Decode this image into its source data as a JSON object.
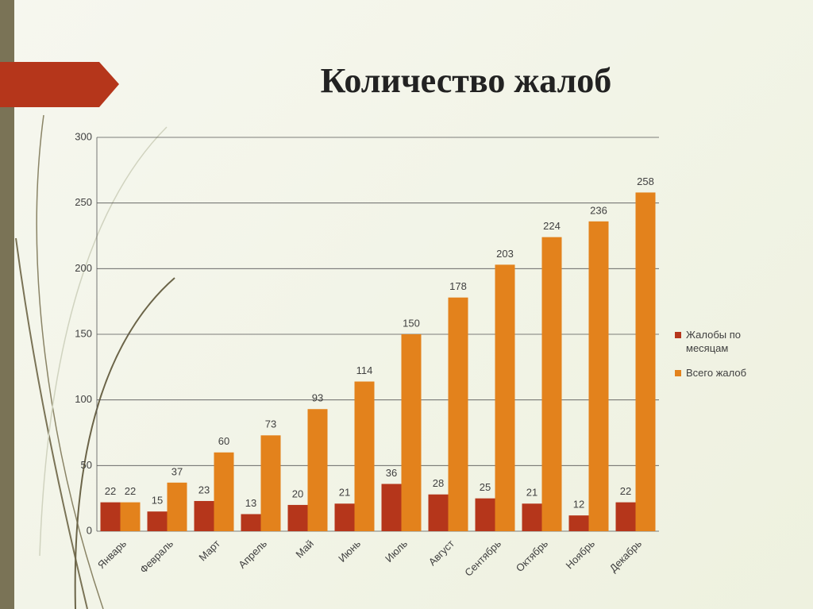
{
  "chart_data": {
    "type": "bar",
    "title": "Количество жалоб",
    "categories": [
      "Январь",
      "Февраль",
      "Март",
      "Апрель",
      "Май",
      "Июнь",
      "Июль",
      "Август",
      "Сентябрь",
      "Октябрь",
      "Ноябрь",
      "Декабрь"
    ],
    "series": [
      {
        "name": "Жалобы по месяцам",
        "color": "#b5361b",
        "values": [
          22,
          15,
          23,
          13,
          20,
          21,
          36,
          28,
          25,
          21,
          12,
          22
        ]
      },
      {
        "name": "Всего жалоб",
        "color": "#e3821c",
        "values": [
          22,
          37,
          60,
          73,
          93,
          114,
          150,
          178,
          203,
          224,
          236,
          258
        ]
      }
    ],
    "ylim": [
      0,
      300
    ],
    "yticks": [
      0,
      50,
      100,
      150,
      200,
      250,
      300
    ],
    "grid": true,
    "legend": "right"
  }
}
